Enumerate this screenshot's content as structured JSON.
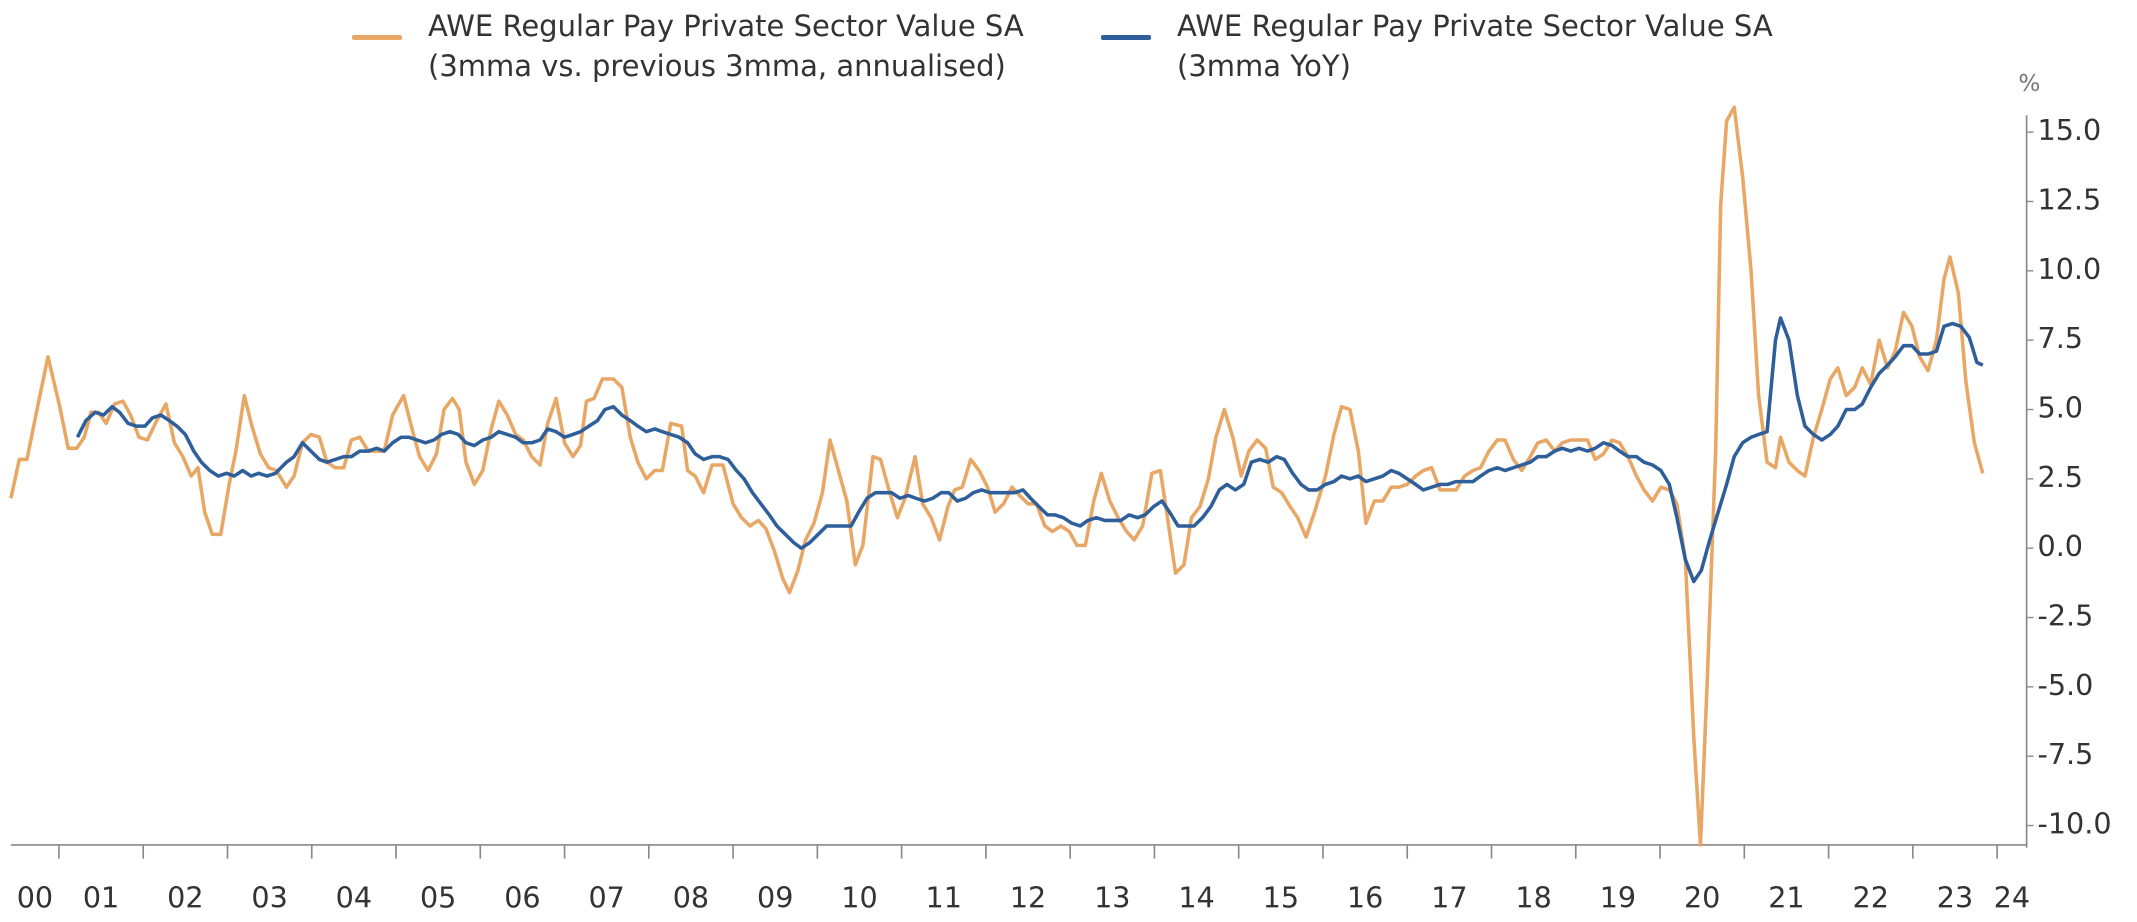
{
  "chart_data": {
    "type": "line",
    "legend_position": "top",
    "y_axis_side": "right",
    "y_unit": "%",
    "xlim": [
      2000.43,
      2024.35
    ],
    "xticks": [
      {
        "value": 2000,
        "label": "00"
      },
      {
        "value": 2001,
        "label": "01"
      },
      {
        "value": 2002,
        "label": "02"
      },
      {
        "value": 2003,
        "label": "03"
      },
      {
        "value": 2004,
        "label": "04"
      },
      {
        "value": 2005,
        "label": "05"
      },
      {
        "value": 2006,
        "label": "06"
      },
      {
        "value": 2007,
        "label": "07"
      },
      {
        "value": 2008,
        "label": "08"
      },
      {
        "value": 2009,
        "label": "09"
      },
      {
        "value": 2010,
        "label": "10"
      },
      {
        "value": 2011,
        "label": "11"
      },
      {
        "value": 2012,
        "label": "12"
      },
      {
        "value": 2013,
        "label": "13"
      },
      {
        "value": 2014,
        "label": "14"
      },
      {
        "value": 2015,
        "label": "15"
      },
      {
        "value": 2016,
        "label": "16"
      },
      {
        "value": 2017,
        "label": "17"
      },
      {
        "value": 2018,
        "label": "18"
      },
      {
        "value": 2019,
        "label": "19"
      },
      {
        "value": 2020,
        "label": "20"
      },
      {
        "value": 2021,
        "label": "21"
      },
      {
        "value": 2022,
        "label": "22"
      },
      {
        "value": 2023,
        "label": "23"
      },
      {
        "value": 2024,
        "label": "24"
      }
    ],
    "ylim": [
      -10.8,
      16.0
    ],
    "yticks": [
      {
        "value": -10,
        "label": "-10.0"
      },
      -7.5,
      {
        "value": -5,
        "label": "-5.0"
      },
      -2.5,
      {
        "value": 0,
        "label": "0.0"
      },
      2.5,
      {
        "value": 5,
        "label": "5.0"
      },
      7.5,
      {
        "value": 10,
        "label": "10.0"
      },
      12.5,
      {
        "value": 15,
        "label": "15.0"
      }
    ],
    "series": [
      {
        "name": "AWE Regular Pay Private Sector Value SA (3mma vs. previous 3mma, annualised)",
        "color": "#e8a765",
        "x": [
          2000.43,
          2000.53,
          2000.62,
          2000.74,
          2000.87,
          2001.01,
          2001.11,
          2001.21,
          2001.3,
          2001.38,
          2001.47,
          2001.56,
          2001.66,
          2001.76,
          2001.85,
          2001.95,
          2002.05,
          2002.16,
          2002.27,
          2002.37,
          2002.47,
          2002.57,
          2002.65,
          2002.73,
          2002.82,
          2002.92,
          2003.02,
          2003.1,
          2003.2,
          2003.29,
          2003.39,
          2003.49,
          2003.58,
          2003.7,
          2003.79,
          2003.89,
          2003.99,
          2004.09,
          2004.18,
          2004.28,
          2004.38,
          2004.47,
          2004.57,
          2004.67,
          2004.77,
          2004.86,
          2004.96,
          2005.09,
          2005.19,
          2005.28,
          2005.38,
          2005.48,
          2005.57,
          2005.67,
          2005.75,
          2005.83,
          2005.93,
          2006.03,
          2006.13,
          2006.22,
          2006.32,
          2006.42,
          2006.51,
          2006.61,
          2006.71,
          2006.8,
          2006.9,
          2007.0,
          2007.1,
          2007.19,
          2007.26,
          2007.35,
          2007.45,
          2007.58,
          2007.68,
          2007.78,
          2007.87,
          2007.97,
          2008.07,
          2008.16,
          2008.26,
          2008.39,
          2008.46,
          2008.55,
          2008.65,
          2008.75,
          2008.88,
          2009.0,
          2009.1,
          2009.2,
          2009.3,
          2009.39,
          2009.49,
          2009.59,
          2009.67,
          2009.77,
          2009.86,
          2009.96,
          2010.06,
          2010.15,
          2010.25,
          2010.35,
          2010.45,
          2010.54,
          2010.66,
          2010.75,
          2010.85,
          2010.95,
          2011.04,
          2011.16,
          2011.25,
          2011.35,
          2011.45,
          2011.55,
          2011.63,
          2011.72,
          2011.82,
          2011.92,
          2012.02,
          2012.11,
          2012.21,
          2012.31,
          2012.4,
          2012.5,
          2012.6,
          2012.7,
          2012.79,
          2012.89,
          2012.99,
          2013.08,
          2013.18,
          2013.28,
          2013.37,
          2013.47,
          2013.57,
          2013.67,
          2013.76,
          2013.86,
          2013.97,
          2014.07,
          2014.15,
          2014.25,
          2014.35,
          2014.44,
          2014.54,
          2014.64,
          2014.73,
          2014.83,
          2014.93,
          2015.03,
          2015.12,
          2015.22,
          2015.32,
          2015.41,
          2015.51,
          2015.61,
          2015.7,
          2015.8,
          2015.9,
          2016.03,
          2016.13,
          2016.22,
          2016.32,
          2016.42,
          2016.51,
          2016.61,
          2016.71,
          2016.81,
          2016.9,
          2017.0,
          2017.1,
          2017.19,
          2017.29,
          2017.39,
          2017.48,
          2017.58,
          2017.68,
          2017.78,
          2017.87,
          2017.97,
          2018.07,
          2018.16,
          2018.26,
          2018.36,
          2018.46,
          2018.55,
          2018.65,
          2018.75,
          2018.84,
          2018.94,
          2019.04,
          2019.14,
          2019.23,
          2019.33,
          2019.43,
          2019.52,
          2019.62,
          2019.72,
          2019.81,
          2019.91,
          2020.01,
          2020.11,
          2020.2,
          2020.3,
          2020.4,
          2020.48,
          2020.56,
          2020.66,
          2020.72,
          2020.79,
          2020.88,
          2020.98,
          2021.08,
          2021.17,
          2021.27,
          2021.37,
          2021.43,
          2021.53,
          2021.63,
          2021.72,
          2021.82,
          2021.92,
          2022.02,
          2022.11,
          2022.21,
          2022.31,
          2022.4,
          2022.5,
          2022.6,
          2022.7,
          2022.79,
          2022.89,
          2022.99,
          2023.08,
          2023.18,
          2023.28,
          2023.37,
          2023.44,
          2023.54,
          2023.63,
          2023.73,
          2023.83
        ],
        "values": [
          1.8,
          3.2,
          3.2,
          5.0,
          6.9,
          5.1,
          3.6,
          3.6,
          4.0,
          4.9,
          4.9,
          4.5,
          5.2,
          5.3,
          4.8,
          4.0,
          3.9,
          4.6,
          5.2,
          3.8,
          3.3,
          2.6,
          2.9,
          1.3,
          0.5,
          0.5,
          2.3,
          3.5,
          5.5,
          4.4,
          3.4,
          2.9,
          2.8,
          2.2,
          2.6,
          3.8,
          4.1,
          4.0,
          3.1,
          2.9,
          2.9,
          3.9,
          4.0,
          3.5,
          3.5,
          3.5,
          4.8,
          5.5,
          4.3,
          3.3,
          2.8,
          3.4,
          5.0,
          5.4,
          5.0,
          3.1,
          2.3,
          2.8,
          4.3,
          5.3,
          4.8,
          4.1,
          3.9,
          3.3,
          3.0,
          4.5,
          5.4,
          3.8,
          3.3,
          3.7,
          5.3,
          5.4,
          6.1,
          6.1,
          5.8,
          4.0,
          3.1,
          2.5,
          2.8,
          2.8,
          4.5,
          4.4,
          2.8,
          2.6,
          2.0,
          3.0,
          3.0,
          1.6,
          1.1,
          0.8,
          1.0,
          0.7,
          -0.1,
          -1.1,
          -1.6,
          -0.8,
          0.3,
          0.9,
          2.0,
          3.9,
          2.8,
          1.7,
          -0.6,
          0.1,
          3.3,
          3.2,
          2.1,
          1.1,
          1.8,
          3.3,
          1.6,
          1.1,
          0.3,
          1.5,
          2.1,
          2.2,
          3.2,
          2.8,
          2.2,
          1.3,
          1.6,
          2.2,
          1.9,
          1.6,
          1.6,
          0.8,
          0.6,
          0.8,
          0.6,
          0.1,
          0.1,
          1.7,
          2.7,
          1.7,
          1.1,
          0.6,
          0.3,
          0.8,
          2.7,
          2.8,
          1.2,
          -0.9,
          -0.6,
          1.1,
          1.5,
          2.5,
          4.0,
          5.0,
          4.0,
          2.6,
          3.5,
          3.9,
          3.6,
          2.2,
          2.0,
          1.5,
          1.1,
          0.4,
          1.3,
          2.6,
          4.1,
          5.1,
          5.0,
          3.5,
          0.9,
          1.7,
          1.7,
          2.2,
          2.2,
          2.3,
          2.6,
          2.8,
          2.9,
          2.1,
          2.1,
          2.1,
          2.6,
          2.8,
          2.9,
          3.5,
          3.9,
          3.9,
          3.2,
          2.8,
          3.3,
          3.8,
          3.9,
          3.5,
          3.8,
          3.9,
          3.9,
          3.9,
          3.2,
          3.4,
          3.9,
          3.8,
          3.3,
          2.6,
          2.1,
          1.7,
          2.2,
          2.1,
          1.6,
          -0.4,
          -6.8,
          -10.7,
          -4.8,
          3.5,
          12.4,
          15.4,
          15.9,
          13.4,
          10.0,
          5.5,
          3.1,
          2.9,
          4.0,
          3.1,
          2.8,
          2.6,
          4.0,
          5.0,
          6.1,
          6.5,
          5.5,
          5.8,
          6.5,
          5.9,
          7.5,
          6.5,
          7.1,
          8.5,
          8.0,
          6.9,
          6.4,
          7.5,
          9.7,
          10.5,
          9.2,
          6.0,
          3.8,
          2.7
        ]
      },
      {
        "name": "AWE Regular Pay Private Sector Value SA (3mma YoY)",
        "color": "#2e5f9a",
        "x": [
          2001.22,
          2001.32,
          2001.43,
          2001.53,
          2001.63,
          2001.72,
          2001.82,
          2001.92,
          2002.02,
          2002.11,
          2002.21,
          2002.31,
          2002.4,
          2002.5,
          2002.6,
          2002.69,
          2002.79,
          2002.89,
          2002.99,
          2003.08,
          2003.18,
          2003.28,
          2003.37,
          2003.47,
          2003.57,
          2003.7,
          2003.79,
          2003.89,
          2003.99,
          2004.09,
          2004.18,
          2004.28,
          2004.38,
          2004.47,
          2004.57,
          2004.67,
          2004.77,
          2004.86,
          2004.96,
          2005.06,
          2005.15,
          2005.25,
          2005.35,
          2005.45,
          2005.54,
          2005.64,
          2005.74,
          2005.83,
          2005.93,
          2006.03,
          2006.13,
          2006.22,
          2006.32,
          2006.42,
          2006.51,
          2006.61,
          2006.71,
          2006.8,
          2006.9,
          2007.0,
          2007.1,
          2007.19,
          2007.29,
          2007.39,
          2007.48,
          2007.58,
          2007.68,
          2007.78,
          2007.87,
          2007.97,
          2008.07,
          2008.16,
          2008.26,
          2008.36,
          2008.46,
          2008.55,
          2008.65,
          2008.75,
          2008.84,
          2008.94,
          2009.04,
          2009.13,
          2009.23,
          2009.33,
          2009.43,
          2009.52,
          2009.62,
          2009.72,
          2009.81,
          2009.91,
          2010.01,
          2010.11,
          2010.2,
          2010.3,
          2010.4,
          2010.49,
          2010.59,
          2010.69,
          2010.79,
          2010.88,
          2010.98,
          2011.08,
          2011.17,
          2011.27,
          2011.37,
          2011.47,
          2011.56,
          2011.66,
          2011.76,
          2011.85,
          2011.95,
          2012.05,
          2012.14,
          2012.24,
          2012.34,
          2012.44,
          2012.53,
          2012.63,
          2012.73,
          2012.82,
          2012.92,
          2013.02,
          2013.12,
          2013.21,
          2013.31,
          2013.41,
          2013.5,
          2013.6,
          2013.7,
          2013.8,
          2013.89,
          2013.99,
          2014.09,
          2014.18,
          2014.28,
          2014.38,
          2014.47,
          2014.57,
          2014.67,
          2014.77,
          2014.86,
          2014.96,
          2015.06,
          2015.15,
          2015.25,
          2015.35,
          2015.45,
          2015.54,
          2015.64,
          2015.74,
          2015.83,
          2015.93,
          2016.03,
          2016.13,
          2016.22,
          2016.32,
          2016.42,
          2016.51,
          2016.61,
          2016.71,
          2016.81,
          2016.9,
          2017.0,
          2017.1,
          2017.19,
          2017.29,
          2017.39,
          2017.48,
          2017.58,
          2017.68,
          2017.78,
          2017.87,
          2017.97,
          2018.07,
          2018.16,
          2018.26,
          2018.36,
          2018.46,
          2018.55,
          2018.65,
          2018.75,
          2018.84,
          2018.94,
          2019.04,
          2019.14,
          2019.23,
          2019.33,
          2019.43,
          2019.52,
          2019.62,
          2019.72,
          2019.81,
          2019.91,
          2020.01,
          2020.11,
          2020.2,
          2020.3,
          2020.4,
          2020.49,
          2020.59,
          2020.69,
          2020.79,
          2020.88,
          2020.98,
          2021.08,
          2021.17,
          2021.27,
          2021.37,
          2021.43,
          2021.53,
          2021.63,
          2021.72,
          2021.82,
          2021.92,
          2022.02,
          2022.11,
          2022.21,
          2022.31,
          2022.4,
          2022.5,
          2022.6,
          2022.7,
          2022.79,
          2022.89,
          2022.99,
          2023.08,
          2023.18,
          2023.28,
          2023.37,
          2023.47,
          2023.57,
          2023.67,
          2023.76,
          2023.83
        ],
        "values": [
          4.0,
          4.6,
          4.9,
          4.8,
          5.1,
          4.9,
          4.5,
          4.4,
          4.4,
          4.7,
          4.8,
          4.6,
          4.4,
          4.1,
          3.5,
          3.1,
          2.8,
          2.6,
          2.7,
          2.6,
          2.8,
          2.6,
          2.7,
          2.6,
          2.7,
          3.1,
          3.3,
          3.8,
          3.5,
          3.2,
          3.1,
          3.2,
          3.3,
          3.3,
          3.5,
          3.5,
          3.6,
          3.5,
          3.8,
          4.0,
          4.0,
          3.9,
          3.8,
          3.9,
          4.1,
          4.2,
          4.1,
          3.8,
          3.7,
          3.9,
          4.0,
          4.2,
          4.1,
          4.0,
          3.8,
          3.8,
          3.9,
          4.3,
          4.2,
          4.0,
          4.1,
          4.2,
          4.4,
          4.6,
          5.0,
          5.1,
          4.8,
          4.6,
          4.4,
          4.2,
          4.3,
          4.2,
          4.1,
          4.0,
          3.8,
          3.4,
          3.2,
          3.3,
          3.3,
          3.2,
          2.8,
          2.5,
          2.0,
          1.6,
          1.2,
          0.8,
          0.5,
          0.2,
          0.0,
          0.2,
          0.5,
          0.8,
          0.8,
          0.8,
          0.8,
          1.3,
          1.8,
          2.0,
          2.0,
          2.0,
          1.8,
          1.9,
          1.8,
          1.7,
          1.8,
          2.0,
          2.0,
          1.7,
          1.8,
          2.0,
          2.1,
          2.0,
          2.0,
          2.0,
          2.0,
          2.1,
          1.8,
          1.5,
          1.2,
          1.2,
          1.1,
          0.9,
          0.8,
          1.0,
          1.1,
          1.0,
          1.0,
          1.0,
          1.2,
          1.1,
          1.2,
          1.5,
          1.7,
          1.3,
          0.8,
          0.8,
          0.8,
          1.1,
          1.5,
          2.1,
          2.3,
          2.1,
          2.3,
          3.1,
          3.2,
          3.1,
          3.3,
          3.2,
          2.7,
          2.3,
          2.1,
          2.1,
          2.3,
          2.4,
          2.6,
          2.5,
          2.6,
          2.4,
          2.5,
          2.6,
          2.8,
          2.7,
          2.5,
          2.3,
          2.1,
          2.2,
          2.3,
          2.3,
          2.4,
          2.4,
          2.4,
          2.6,
          2.8,
          2.9,
          2.8,
          2.9,
          3.0,
          3.1,
          3.3,
          3.3,
          3.5,
          3.6,
          3.5,
          3.6,
          3.5,
          3.6,
          3.8,
          3.7,
          3.5,
          3.3,
          3.3,
          3.1,
          3.0,
          2.8,
          2.3,
          1.1,
          -0.4,
          -1.2,
          -0.8,
          0.3,
          1.3,
          2.3,
          3.3,
          3.8,
          4.0,
          4.1,
          4.2,
          7.5,
          8.3,
          7.5,
          5.5,
          4.4,
          4.1,
          3.9,
          4.1,
          4.4,
          5.0,
          5.0,
          5.2,
          5.8,
          6.3,
          6.6,
          6.9,
          7.3,
          7.3,
          7.0,
          7.0,
          7.1,
          8.0,
          8.1,
          8.0,
          7.6,
          6.7,
          6.6
        ]
      }
    ]
  }
}
